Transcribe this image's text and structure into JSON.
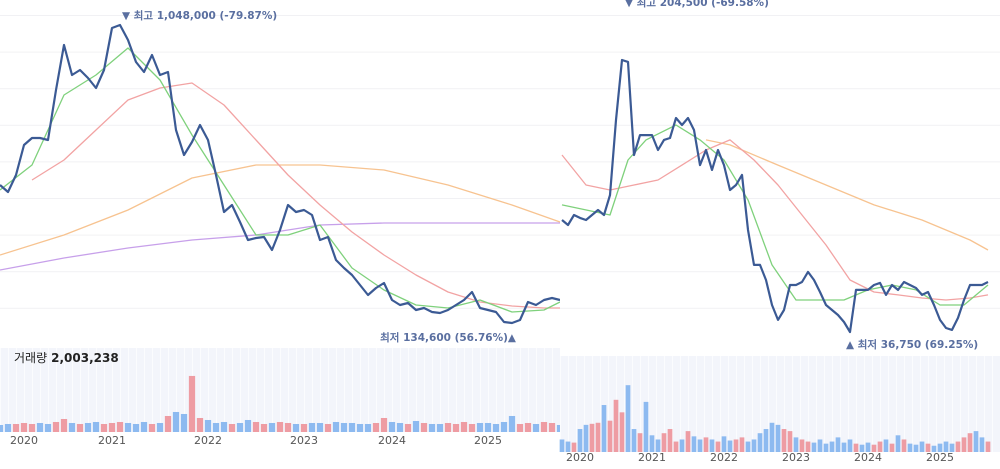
{
  "chart_data": [
    {
      "type": "line",
      "categories": [
        null,
        null,
        null,
        "2020",
        null,
        null,
        null,
        null,
        null,
        null,
        null,
        null,
        null,
        null,
        "2021",
        null,
        null,
        null,
        null,
        null,
        null,
        null,
        null,
        null,
        null,
        null,
        "2022",
        null,
        null,
        null,
        null,
        null,
        null,
        null,
        null,
        null,
        null,
        null,
        "2023",
        null,
        null,
        null,
        null,
        null,
        null,
        null,
        null,
        null,
        null,
        "2024",
        null,
        null,
        null,
        null,
        null,
        null,
        null,
        null,
        null,
        null,
        null,
        "2025",
        null,
        null,
        null,
        null,
        null,
        null,
        null,
        null,
        null
      ],
      "ylim": [
        82500,
        1124600
      ],
      "series": [
        {
          "color": "#3b5a94",
          "values": [
            557600,
            536100,
            588200,
            680200,
            701600,
            701600,
            695500,
            848700,
            986700,
            894700,
            910000,
            885500,
            854900,
            910000,
            1038800,
            1048000,
            1002000,
            934600,
            903900,
            956000,
            894700,
            903900,
            726100,
            649500,
            689400,
            741500,
            695500,
            588200,
            474800,
            496300,
            444200,
            389000,
            395100,
            398200,
            358300,
            419600,
            496300,
            474800,
            480900,
            465600,
            389000,
            398200,
            327700,
            303200,
            281700,
            251100,
            220400,
            241900,
            257200,
            205100,
            189800,
            195900,
            174400,
            180600,
            168300,
            165300,
            174400,
            189800,
            205100,
            229600,
            180600,
            174400,
            168300,
            137700,
            134600,
            143800,
            199000,
            189800,
            205100,
            211200,
            205100
          ]
        },
        {
          "color": "#7fd17c",
          "x": [
            0,
            4,
            8,
            12,
            16,
            20,
            24,
            28,
            32,
            36,
            40,
            44,
            48,
            52,
            56,
            60,
            64,
            68,
            70
          ],
          "values": [
            542200,
            618900,
            833400,
            894700,
            977500,
            879400,
            710800,
            557600,
            404300,
            404300,
            435000,
            303200,
            235700,
            189800,
            180600,
            205100,
            168300,
            174400,
            199000
          ]
        },
        {
          "color": "#f2a3a3",
          "x": [
            4,
            8,
            12,
            16,
            20,
            24,
            28,
            32,
            36,
            40,
            44,
            48,
            52,
            56,
            60,
            64,
            68,
            70
          ],
          "values": [
            572900,
            634200,
            726100,
            818100,
            854900,
            870200,
            802800,
            695500,
            588200,
            496300,
            413500,
            343000,
            281700,
            229600,
            199000,
            186700,
            180600,
            180600
          ]
        },
        {
          "color": "#f7c390",
          "x": [
            0,
            8,
            16,
            24,
            32,
            40,
            48,
            56,
            64,
            70
          ],
          "values": [
            343000,
            404300,
            480900,
            579000,
            618900,
            618900,
            603500,
            557600,
            496300,
            444200
          ]
        },
        {
          "color": "#c7a0ea",
          "x": [
            0,
            8,
            16,
            24,
            32,
            40,
            48,
            56,
            64,
            70
          ],
          "values": [
            297000,
            333800,
            364500,
            389000,
            404300,
            435000,
            441100,
            441100,
            441100,
            441100
          ]
        }
      ],
      "volume": {
        "up_color": "#ee9ca3",
        "down_color": "#8dbaf0",
        "y2lim": [
          0,
          24000000
        ],
        "values": [
          2002000,
          2288000,
          2288000,
          2574000,
          2288000,
          2574000,
          2288000,
          2860000,
          3718000,
          2574000,
          2288000,
          2574000,
          2860000,
          2288000,
          2574000,
          2860000,
          2574000,
          2288000,
          2860000,
          2288000,
          2574000,
          4576000,
          5720000,
          5148000,
          16016000,
          4004000,
          3432000,
          2574000,
          2860000,
          2288000,
          2574000,
          3432000,
          2860000,
          2288000,
          2574000,
          2860000,
          2574000,
          2288000,
          2288000,
          2574000,
          2574000,
          2288000,
          2860000,
          2574000,
          2574000,
          2288000,
          2288000,
          2574000,
          4004000,
          2860000,
          2574000,
          2288000,
          3146000,
          2574000,
          2288000,
          2288000,
          2574000,
          2288000,
          2860000,
          2288000,
          2574000,
          2574000,
          2288000,
          2860000,
          4576000,
          2288000,
          2574000,
          2288000,
          2860000,
          2574000,
          2003238
        ]
      },
      "annotations": [
        "▼ 최고 1,048,000 (-79.87%)",
        "최저 134,600 (56.76%)▲"
      ],
      "volume_label": "거래량",
      "volume_text": "2,003,238"
    },
    {
      "type": "line",
      "categories": [
        null,
        null,
        null,
        "2020",
        null,
        null,
        null,
        null,
        null,
        null,
        null,
        null,
        null,
        null,
        null,
        "2021",
        null,
        null,
        null,
        null,
        null,
        null,
        null,
        null,
        null,
        null,
        null,
        "2022",
        null,
        null,
        null,
        null,
        null,
        null,
        null,
        null,
        null,
        null,
        null,
        "2023",
        null,
        null,
        null,
        null,
        null,
        null,
        null,
        null,
        null,
        null,
        null,
        "2024",
        null,
        null,
        null,
        null,
        null,
        null,
        null,
        null,
        null,
        null,
        null,
        "2025",
        null,
        null,
        null,
        null,
        null,
        null,
        null,
        null
      ],
      "ylim": [
        31800,
        241500
      ],
      "series": [
        {
          "color": "#3b5a94",
          "values": [
            105800,
            102700,
            108900,
            107100,
            105800,
            108900,
            112000,
            108900,
            121200,
            167500,
            204500,
            203300,
            145900,
            158200,
            158200,
            158200,
            149000,
            155200,
            156400,
            168700,
            164400,
            168700,
            161300,
            139700,
            149000,
            136700,
            149000,
            139700,
            124300,
            127400,
            133600,
            99700,
            78100,
            78100,
            68800,
            53400,
            44200,
            50300,
            65700,
            65700,
            67600,
            73800,
            68800,
            61400,
            53400,
            50300,
            47200,
            42900,
            36750,
            62700,
            62700,
            62700,
            65700,
            67000,
            59600,
            65700,
            62700,
            67600,
            65700,
            63900,
            59600,
            61400,
            53400,
            44200,
            39200,
            38000,
            45400,
            56500,
            65700,
            65700,
            65700,
            67600
          ]
        },
        {
          "color": "#7fd17c",
          "x": [
            0,
            8,
            11,
            14,
            19,
            23,
            27,
            31,
            35,
            39,
            43,
            47,
            51,
            55,
            59,
            63,
            67,
            71
          ],
          "values": [
            115100,
            108900,
            142800,
            155200,
            164400,
            155200,
            142800,
            118200,
            78100,
            56500,
            56500,
            56500,
            62700,
            65700,
            62700,
            53400,
            53400,
            65700
          ]
        },
        {
          "color": "#f2a3a3",
          "x": [
            0,
            4,
            8,
            12,
            16,
            20,
            24,
            28,
            32,
            36,
            40,
            44,
            48,
            52,
            56,
            60,
            64,
            68,
            71
          ],
          "values": [
            145900,
            127400,
            124300,
            127400,
            130500,
            139700,
            149000,
            155200,
            142800,
            127400,
            108900,
            90400,
            68800,
            61400,
            59600,
            57700,
            56500,
            57700,
            59600
          ]
        },
        {
          "color": "#f7c390",
          "x": [
            24,
            28,
            36,
            44,
            52,
            60,
            68,
            71
          ],
          "values": [
            155200,
            152100,
            139700,
            127400,
            115100,
            105800,
            93500,
            87300
          ]
        }
      ],
      "volume": {
        "up_color": "#ee9ca3",
        "down_color": "#8dbaf0",
        "y2lim": [
          0,
          8000000
        ],
        "values": [
          1044000,
          870000,
          783000,
          1914000,
          2262000,
          2349000,
          2436000,
          3915000,
          2610000,
          4350000,
          3306000,
          5568000,
          1914000,
          1566000,
          4176000,
          1392000,
          1044000,
          1566000,
          1914000,
          870000,
          1044000,
          1740000,
          1305000,
          1044000,
          1218000,
          1044000,
          870000,
          1305000,
          957000,
          1044000,
          1218000,
          870000,
          1044000,
          1566000,
          1914000,
          2436000,
          2262000,
          1914000,
          1740000,
          1218000,
          1044000,
          870000,
          783000,
          1044000,
          696000,
          870000,
          1218000,
          783000,
          1044000,
          696000,
          609000,
          783000,
          609000,
          870000,
          1044000,
          696000,
          1392000,
          1044000,
          696000,
          609000,
          870000,
          696000,
          522000,
          696000,
          870000,
          696000,
          870000,
          1218000,
          1566000,
          1740000,
          1218000,
          870000
        ]
      },
      "annotations": [
        "▼ 최고 204,500 (-69.58%)",
        "▲ 최저 36,750 (69.25%)"
      ]
    }
  ]
}
